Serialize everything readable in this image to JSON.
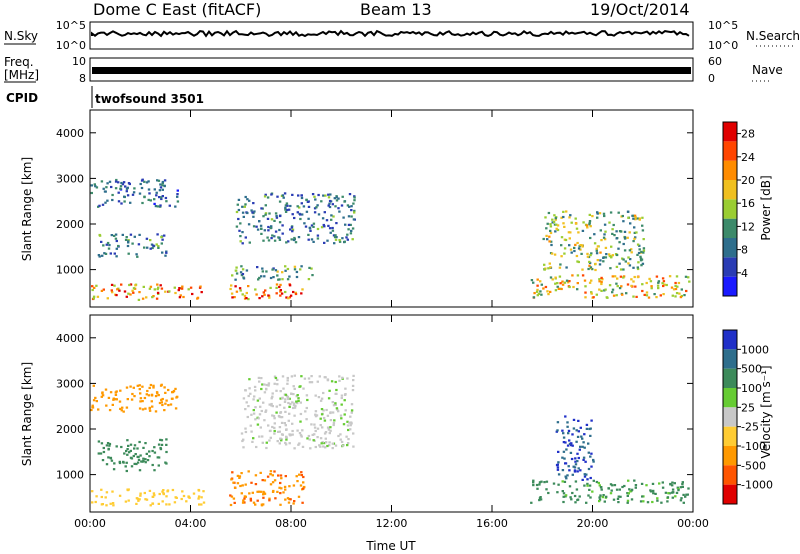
{
  "header": {
    "station": "Dome C East (fitACF)",
    "beam": "Beam 13",
    "date": "19/Oct/2014"
  },
  "strips": {
    "nsky_label": "N.Sky",
    "nsky_ticks": [
      "10^5",
      "10^0"
    ],
    "nsearch_label": "N.Search",
    "nsearch_ticks": [
      "10^5",
      "10^0"
    ],
    "freq_label_1": "Freq.",
    "freq_label_2": "[MHz]",
    "freq_ticks": [
      "10",
      "8"
    ],
    "nave_label": "Nave",
    "nave_ticks": [
      "60",
      "0"
    ],
    "cpid_label": "CPID",
    "cpid_value": "twofsound 3501"
  },
  "colors": {
    "power_scale": [
      "#1a1aff",
      "#2a3cb4",
      "#2e6e8c",
      "#3c8a6a",
      "#9acd32",
      "#f0c020",
      "#ff8c00",
      "#ff4500",
      "#e00000"
    ],
    "velocity_scale": [
      "#2030c8",
      "#2e6e8c",
      "#3c8a5a",
      "#66cc33",
      "#c8c8c8",
      "#ffcc33",
      "#ff9900",
      "#ff5500",
      "#e00000"
    ]
  },
  "chart_data": [
    {
      "type": "heatmap",
      "panel": "power",
      "ylabel": "Slant Range [km]",
      "xlabel": "",
      "x_ticks": [
        "00:00",
        "04:00",
        "08:00",
        "12:00",
        "16:00",
        "20:00",
        "00:00"
      ],
      "x_range_hours": [
        0,
        24
      ],
      "y_ticks": [
        "1000",
        "2000",
        "3000",
        "4000"
      ],
      "ylim": [
        180,
        4500
      ],
      "colorbar": {
        "label": "Power [dB]",
        "ticks": [
          "4",
          "8",
          "12",
          "16",
          "20",
          "24",
          "28"
        ],
        "range": [
          0,
          30
        ]
      },
      "regions": [
        {
          "t0": 0.0,
          "t1": 4.5,
          "r0": 350,
          "r1": 700,
          "value": 22
        },
        {
          "t0": 0.3,
          "t1": 3.0,
          "r0": 1300,
          "r1": 1800,
          "value": 10
        },
        {
          "t0": 0.0,
          "t1": 3.5,
          "r0": 2400,
          "r1": 3000,
          "value": 8
        },
        {
          "t0": 5.5,
          "t1": 8.5,
          "r0": 350,
          "r1": 700,
          "value": 24
        },
        {
          "t0": 5.8,
          "t1": 10.5,
          "r0": 1600,
          "r1": 2700,
          "value": 9
        },
        {
          "t0": 5.5,
          "t1": 9.0,
          "r0": 800,
          "r1": 1100,
          "value": 12
        },
        {
          "t0": 17.5,
          "t1": 24.0,
          "r0": 400,
          "r1": 900,
          "value": 18
        },
        {
          "t0": 18.0,
          "t1": 22.0,
          "r0": 1000,
          "r1": 2300,
          "value": 14
        }
      ]
    },
    {
      "type": "heatmap",
      "panel": "velocity",
      "ylabel": "Slant Range [km]",
      "xlabel": "Time UT",
      "x_ticks": [
        "00:00",
        "04:00",
        "08:00",
        "12:00",
        "16:00",
        "20:00",
        "00:00"
      ],
      "x_range_hours": [
        0,
        24
      ],
      "y_ticks": [
        "1000",
        "2000",
        "3000",
        "4000"
      ],
      "ylim": [
        180,
        4500
      ],
      "colorbar": {
        "label": "Velocity [m s⁻¹]",
        "ticks": [
          "1000",
          "500",
          "100",
          "25",
          "-25",
          "-100",
          "-500",
          "-1000"
        ]
      },
      "regions": [
        {
          "t0": 0.0,
          "t1": 4.5,
          "r0": 350,
          "r1": 700,
          "value": -60
        },
        {
          "t0": 0.3,
          "t1": 3.0,
          "r0": 1100,
          "r1": 1800,
          "value": 150
        },
        {
          "t0": 0.0,
          "t1": 3.5,
          "r0": 2400,
          "r1": 3000,
          "value": -200
        },
        {
          "t0": 5.5,
          "t1": 8.5,
          "r0": 350,
          "r1": 1100,
          "value": -450
        },
        {
          "t0": 6.0,
          "t1": 10.5,
          "r0": 1600,
          "r1": 3200,
          "value": 20
        },
        {
          "t0": 18.5,
          "t1": 20.0,
          "r0": 900,
          "r1": 2300,
          "value": 1000
        },
        {
          "t0": 17.5,
          "t1": 24.0,
          "r0": 400,
          "r1": 900,
          "value": 120
        }
      ]
    }
  ]
}
